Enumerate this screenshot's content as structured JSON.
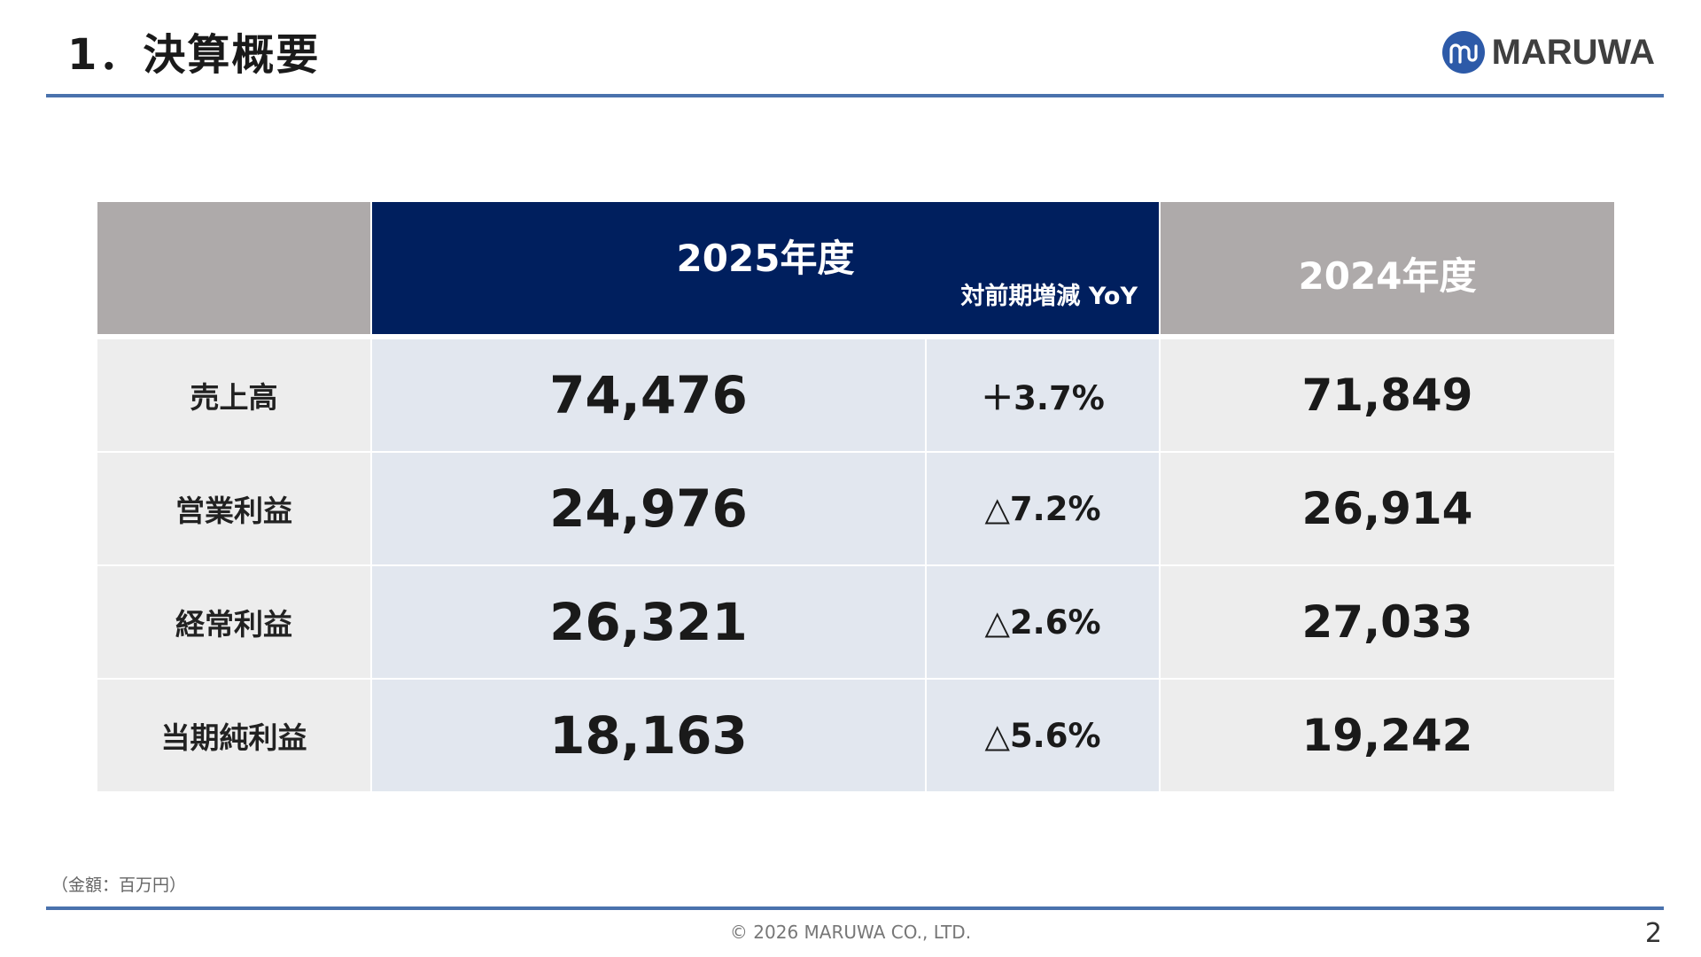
{
  "title": "1．決算概要",
  "logo": {
    "text": "MARUWA",
    "icon": "maruwa-logo-icon",
    "color": "#2d5aa8"
  },
  "table": {
    "current_year": "2025年度",
    "yoy_label": "対前期増減 YoY",
    "previous_year": "2024年度",
    "rows": [
      {
        "label": "売上高",
        "current": "74,476",
        "yoy": "＋3.7%",
        "previous": "71,849"
      },
      {
        "label": "営業利益",
        "current": "24,976",
        "yoy": "△7.2%",
        "previous": "26,914"
      },
      {
        "label": "経常利益",
        "current": "26,321",
        "yoy": "△2.6%",
        "previous": "27,033"
      },
      {
        "label": "当期純利益",
        "current": "18,163",
        "yoy": "△5.6%",
        "previous": "19,242"
      }
    ]
  },
  "unit_note": "（金額：百万円）",
  "copyright": "© 2026 MARUWA CO., LTD.",
  "page_number": "2",
  "colors": {
    "accent_rule": "#4a72ad",
    "header_current": "#001f5e",
    "header_gray": "#aeaaaa"
  }
}
